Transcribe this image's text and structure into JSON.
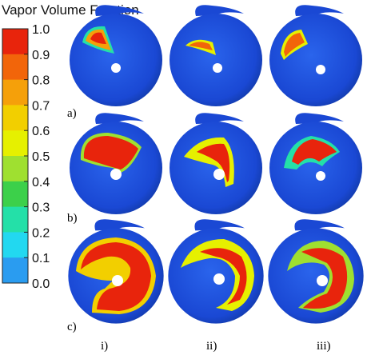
{
  "colorbar": {
    "title": "Vapor Volume Fraction",
    "ticks": [
      "1.0",
      "0.9",
      "0.8",
      "0.7",
      "0.6",
      "0.5",
      "0.4",
      "0.3",
      "0.2",
      "0.1",
      "0.0"
    ],
    "colors": [
      "#e8240c",
      "#f2650a",
      "#f5a00a",
      "#f2cf00",
      "#e6f000",
      "#9fe030",
      "#3cd04a",
      "#24e0a8",
      "#22d8f0",
      "#2a9cf0",
      "#1450e8"
    ]
  },
  "row_labels": [
    "a)",
    "b)",
    "c)"
  ],
  "column_labels": [
    "i)",
    "ii)",
    "iii)"
  ]
}
